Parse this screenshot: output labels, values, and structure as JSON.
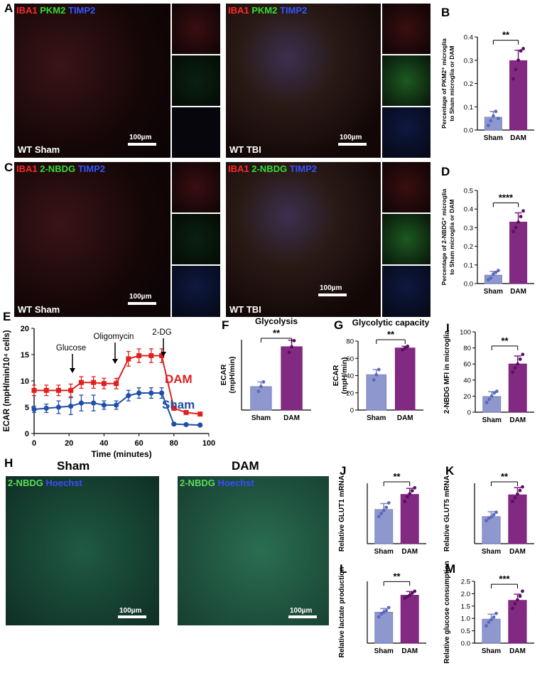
{
  "panel_labels": {
    "A": "A",
    "B": "B",
    "C": "C",
    "D": "D",
    "E": "E",
    "F": "F",
    "G": "G",
    "H": "H",
    "I": "I",
    "J": "J",
    "K": "K",
    "L": "L",
    "M": "M"
  },
  "microscopy": {
    "a_left": {
      "stain1": "IBA1",
      "stain2": "PKM2",
      "stain3": "TIMP2",
      "label": "WT Sham",
      "scale": "100µm"
    },
    "a_right": {
      "stain1": "IBA1",
      "stain2": "PKM2",
      "stain3": "TIMP2",
      "label": "WT TBI",
      "scale": "100µm"
    },
    "c_left": {
      "stain1": "IBA1",
      "stain2": "2-NBDG",
      "stain3": "TIMP2",
      "label": "WT Sham",
      "scale": "100µm"
    },
    "c_right": {
      "stain1": "IBA1",
      "stain2": "2-NBDG",
      "stain3": "TIMP2",
      "label": "WT TBI",
      "scale": "100µm"
    },
    "h_left": {
      "title": "Sham",
      "stain1": "2-NBDG",
      "stain2": "Hoechst",
      "scale": "100µm"
    },
    "h_right": {
      "title": "DAM",
      "stain1": "2-NBDG",
      "stain2": "Hoechst",
      "scale": "100µm"
    }
  },
  "colors": {
    "sham": "#7b85c7",
    "dam": "#7b1f7a",
    "red": "#e02020",
    "blue": "#1f4fa8"
  },
  "chart_data": [
    {
      "id": "B",
      "type": "bar",
      "categories": [
        "Sham",
        "DAM"
      ],
      "values": [
        0.055,
        0.298
      ],
      "errors": [
        0.025,
        0.045
      ],
      "points": [
        [
          0.02,
          0.04,
          0.06,
          0.08,
          0.05
        ],
        [
          0.22,
          0.26,
          0.3,
          0.34,
          0.35
        ]
      ],
      "ylabel": "Percentage of PKM2⁺ microglia to Sham microglia or DAM",
      "ylim": [
        0,
        0.4
      ],
      "yticks": [
        "0.0",
        "0.1",
        "0.2",
        "0.3",
        "0.4"
      ],
      "sig": "**"
    },
    {
      "id": "D",
      "type": "bar",
      "categories": [
        "Sham",
        "DAM"
      ],
      "values": [
        0.045,
        0.33
      ],
      "errors": [
        0.02,
        0.05
      ],
      "points": [
        [
          0.02,
          0.03,
          0.05,
          0.06,
          0.07
        ],
        [
          0.28,
          0.3,
          0.33,
          0.36,
          0.39
        ]
      ],
      "ylabel": "Percentage of 2-NBDG⁺ microglia to Sham microglia or DAM",
      "ylim": [
        0,
        0.5
      ],
      "yticks": [
        "0.0",
        "0.1",
        "0.2",
        "0.3",
        "0.4",
        "0.5"
      ],
      "sig": "****"
    },
    {
      "id": "E",
      "type": "line",
      "x": [
        0,
        7,
        14,
        21,
        27,
        34,
        40,
        47,
        54,
        60,
        67,
        73,
        80,
        87,
        95
      ],
      "series": [
        {
          "name": "DAM",
          "values": [
            8.2,
            8.2,
            8.2,
            8.2,
            9.7,
            9.7,
            9.5,
            9.5,
            14.2,
            14.8,
            14.8,
            14.8,
            4.8,
            4.0,
            3.7
          ],
          "errors": [
            1.0,
            1.0,
            1.0,
            1.2,
            1.1,
            1.1,
            1.0,
            1.0,
            1.4,
            1.3,
            1.3,
            1.3,
            0.3,
            0.3,
            0.3
          ]
        },
        {
          "name": "Sham",
          "values": [
            4.6,
            4.8,
            5.0,
            5.2,
            5.8,
            5.8,
            5.4,
            5.4,
            7.2,
            7.7,
            7.7,
            7.7,
            1.8,
            1.7,
            1.6
          ],
          "errors": [
            0.6,
            0.8,
            1.2,
            1.6,
            1.5,
            1.5,
            0.8,
            0.8,
            1.0,
            1.0,
            1.0,
            1.0,
            0.2,
            0.2,
            0.2
          ]
        }
      ],
      "ylabel": "ECAR (mpH/min/10⁴ cells)",
      "xlabel": "Time (minutes)",
      "xlim": [
        0,
        100
      ],
      "ylim": [
        0,
        20
      ],
      "xticks": [
        "0",
        "20",
        "40",
        "60",
        "80",
        "100"
      ],
      "yticks": [
        "0",
        "5",
        "10",
        "15",
        "20"
      ],
      "annotations": [
        "Glucose",
        "Oligomycin",
        "2-DG"
      ]
    },
    {
      "id": "F",
      "type": "bar",
      "title": "Glycolysis",
      "categories": [
        "Sham",
        "DAM"
      ],
      "values": [
        5.0,
        13.5
      ],
      "errors": [
        1.0,
        1.4
      ],
      "points": [
        [
          4.0,
          5.0,
          6.0
        ],
        [
          12.3,
          13.5,
          14.8
        ]
      ],
      "ylabel": "ECAR (mpH/min)",
      "ylim": [
        0,
        15
      ],
      "yticks": [],
      "sig": "**"
    },
    {
      "id": "G",
      "type": "bar",
      "title": "Glycolytic capacity",
      "categories": [
        "Sham",
        "DAM"
      ],
      "values": [
        41,
        72
      ],
      "errors": [
        6,
        2
      ],
      "points": [
        [
          35,
          41,
          47
        ],
        [
          70,
          72,
          74
        ]
      ],
      "ylabel": "ECAR (mpH/min)",
      "ylim": [
        0,
        80
      ],
      "yticks": [
        "0",
        "20",
        "40",
        "60",
        "80"
      ],
      "sig": "**"
    },
    {
      "id": "I",
      "type": "bar",
      "categories": [
        "Sham",
        "DAM"
      ],
      "values": [
        19.5,
        60
      ],
      "errors": [
        6,
        10
      ],
      "points": [
        [
          12,
          16,
          20,
          24,
          26
        ],
        [
          50,
          55,
          60,
          66,
          72
        ]
      ],
      "ylabel": "2-NBDG MFI in microglia",
      "ylim": [
        0,
        100
      ],
      "yticks": [
        "0",
        "20",
        "40",
        "60",
        "80",
        "100"
      ],
      "sig": "**"
    },
    {
      "id": "J",
      "type": "bar",
      "categories": [
        "Sham",
        "DAM"
      ],
      "values": [
        1.13,
        1.63
      ],
      "errors": [
        0.2,
        0.2
      ],
      "points": [
        [
          0.9,
          1.0,
          1.1,
          1.2,
          1.35
        ],
        [
          1.4,
          1.55,
          1.65,
          1.75,
          1.85
        ]
      ],
      "ylabel": "Relative GLUT1 mRNA",
      "ylim": [
        0,
        2
      ],
      "yticks": [],
      "sig": "**"
    },
    {
      "id": "K",
      "type": "bar",
      "categories": [
        "Sham",
        "DAM"
      ],
      "values": [
        1.12,
        2.02
      ],
      "errors": [
        0.2,
        0.3
      ],
      "points": [
        [
          0.95,
          1.05,
          1.1,
          1.2,
          1.3
        ],
        [
          1.75,
          1.9,
          2.05,
          2.2,
          2.35
        ]
      ],
      "ylabel": "Relative GLUT5 mRNA",
      "ylim": [
        0,
        2.5
      ],
      "yticks": [],
      "sig": "**"
    },
    {
      "id": "L",
      "type": "bar",
      "categories": [
        "Sham",
        "DAM"
      ],
      "values": [
        1.0,
        1.55
      ],
      "errors": [
        0.12,
        0.12
      ],
      "points": [
        [
          0.85,
          0.95,
          1.0,
          1.05,
          1.15
        ],
        [
          1.45,
          1.5,
          1.55,
          1.62,
          1.68
        ]
      ],
      "ylabel": "Relative lactate production",
      "ylim": [
        0,
        2
      ],
      "yticks": [],
      "sig": "**"
    },
    {
      "id": "M",
      "type": "bar",
      "categories": [
        "Sham",
        "DAM"
      ],
      "values": [
        0.97,
        1.73
      ],
      "errors": [
        0.2,
        0.25
      ],
      "points": [
        [
          0.7,
          0.85,
          0.95,
          1.05,
          1.2
        ],
        [
          1.4,
          1.6,
          1.75,
          1.9,
          2.1
        ]
      ],
      "ylabel": "Relative glucose consumption",
      "ylim": [
        0,
        2.5
      ],
      "yticks": [
        "0.0",
        "0.5",
        "1.0",
        "1.5",
        "2.0",
        "2.5"
      ],
      "sig": "***"
    }
  ]
}
